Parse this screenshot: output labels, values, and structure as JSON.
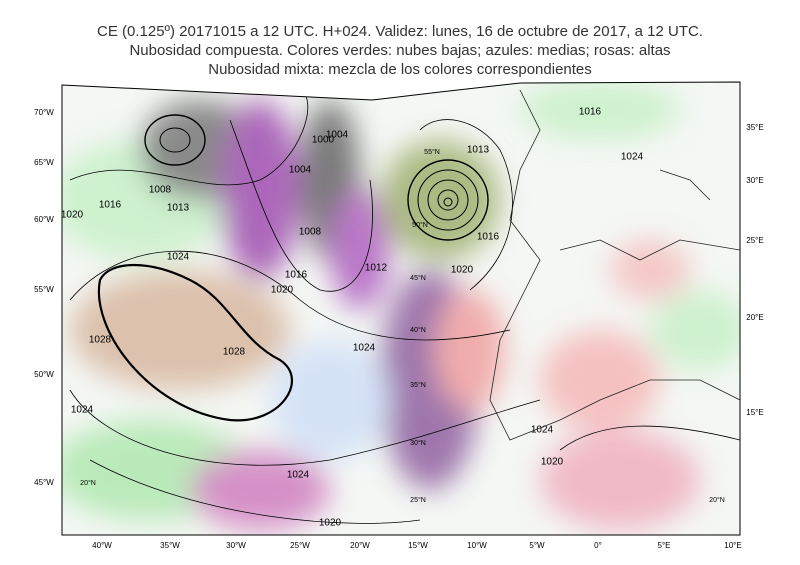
{
  "header": {
    "lines": [
      "CE (0.125º) 20171015 a 12 UTC.  H+024. Validez: lunes, 16 de octubre de 2017,  a  12 UTC.",
      "Nubosidad compuesta. Colores verdes: nubes bajas; azules: medias; rosas: altas",
      "Nubosidad mixta: mezcla de los colores correspondientes"
    ]
  },
  "map": {
    "bottom_labels": [
      "40°W",
      "35°W",
      "30°W",
      "25°W",
      "20°W",
      "15°W",
      "10°W",
      "5°W",
      "0°",
      "5°E",
      "10°E"
    ],
    "left_labels": [
      "70°W",
      "65°W",
      "60°W",
      "55°W",
      "50°W",
      "45°W"
    ],
    "right_labels": [
      "35°E",
      "30°E",
      "25°E",
      "20°E",
      "15°E"
    ],
    "grid_labels": [
      "55°N",
      "50°N",
      "45°N",
      "40°N",
      "35°N",
      "30°N",
      "25°N",
      "20°N",
      "20°N"
    ],
    "isobar_labels": [
      "1028",
      "1028",
      "1024",
      "1024",
      "1024",
      "1024",
      "1020",
      "1020",
      "1020",
      "1020",
      "1020",
      "1016",
      "1016",
      "1016",
      "1013",
      "1012",
      "1008",
      "1008",
      "1004",
      "1004",
      "1000",
      "1016",
      "1024",
      "1024",
      "1013"
    ]
  }
}
